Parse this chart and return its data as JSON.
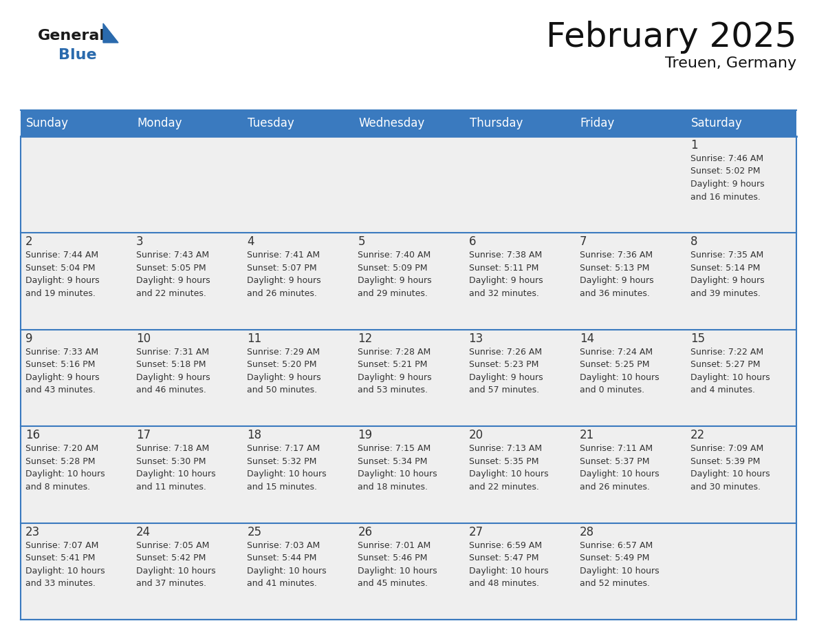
{
  "title": "February 2025",
  "subtitle": "Treuen, Germany",
  "header_color": "#3a7abf",
  "header_text_color": "#ffffff",
  "cell_bg_top": "#eeeeee",
  "cell_bg_main": "#ffffff",
  "day_number_color": "#333333",
  "text_color": "#333333",
  "border_color": "#3a7abf",
  "separator_color": "#3a7abf",
  "days_of_week": [
    "Sunday",
    "Monday",
    "Tuesday",
    "Wednesday",
    "Thursday",
    "Friday",
    "Saturday"
  ],
  "calendar_data": [
    [
      {
        "day": "",
        "info": ""
      },
      {
        "day": "",
        "info": ""
      },
      {
        "day": "",
        "info": ""
      },
      {
        "day": "",
        "info": ""
      },
      {
        "day": "",
        "info": ""
      },
      {
        "day": "",
        "info": ""
      },
      {
        "day": "1",
        "info": "Sunrise: 7:46 AM\nSunset: 5:02 PM\nDaylight: 9 hours\nand 16 minutes."
      }
    ],
    [
      {
        "day": "2",
        "info": "Sunrise: 7:44 AM\nSunset: 5:04 PM\nDaylight: 9 hours\nand 19 minutes."
      },
      {
        "day": "3",
        "info": "Sunrise: 7:43 AM\nSunset: 5:05 PM\nDaylight: 9 hours\nand 22 minutes."
      },
      {
        "day": "4",
        "info": "Sunrise: 7:41 AM\nSunset: 5:07 PM\nDaylight: 9 hours\nand 26 minutes."
      },
      {
        "day": "5",
        "info": "Sunrise: 7:40 AM\nSunset: 5:09 PM\nDaylight: 9 hours\nand 29 minutes."
      },
      {
        "day": "6",
        "info": "Sunrise: 7:38 AM\nSunset: 5:11 PM\nDaylight: 9 hours\nand 32 minutes."
      },
      {
        "day": "7",
        "info": "Sunrise: 7:36 AM\nSunset: 5:13 PM\nDaylight: 9 hours\nand 36 minutes."
      },
      {
        "day": "8",
        "info": "Sunrise: 7:35 AM\nSunset: 5:14 PM\nDaylight: 9 hours\nand 39 minutes."
      }
    ],
    [
      {
        "day": "9",
        "info": "Sunrise: 7:33 AM\nSunset: 5:16 PM\nDaylight: 9 hours\nand 43 minutes."
      },
      {
        "day": "10",
        "info": "Sunrise: 7:31 AM\nSunset: 5:18 PM\nDaylight: 9 hours\nand 46 minutes."
      },
      {
        "day": "11",
        "info": "Sunrise: 7:29 AM\nSunset: 5:20 PM\nDaylight: 9 hours\nand 50 minutes."
      },
      {
        "day": "12",
        "info": "Sunrise: 7:28 AM\nSunset: 5:21 PM\nDaylight: 9 hours\nand 53 minutes."
      },
      {
        "day": "13",
        "info": "Sunrise: 7:26 AM\nSunset: 5:23 PM\nDaylight: 9 hours\nand 57 minutes."
      },
      {
        "day": "14",
        "info": "Sunrise: 7:24 AM\nSunset: 5:25 PM\nDaylight: 10 hours\nand 0 minutes."
      },
      {
        "day": "15",
        "info": "Sunrise: 7:22 AM\nSunset: 5:27 PM\nDaylight: 10 hours\nand 4 minutes."
      }
    ],
    [
      {
        "day": "16",
        "info": "Sunrise: 7:20 AM\nSunset: 5:28 PM\nDaylight: 10 hours\nand 8 minutes."
      },
      {
        "day": "17",
        "info": "Sunrise: 7:18 AM\nSunset: 5:30 PM\nDaylight: 10 hours\nand 11 minutes."
      },
      {
        "day": "18",
        "info": "Sunrise: 7:17 AM\nSunset: 5:32 PM\nDaylight: 10 hours\nand 15 minutes."
      },
      {
        "day": "19",
        "info": "Sunrise: 7:15 AM\nSunset: 5:34 PM\nDaylight: 10 hours\nand 18 minutes."
      },
      {
        "day": "20",
        "info": "Sunrise: 7:13 AM\nSunset: 5:35 PM\nDaylight: 10 hours\nand 22 minutes."
      },
      {
        "day": "21",
        "info": "Sunrise: 7:11 AM\nSunset: 5:37 PM\nDaylight: 10 hours\nand 26 minutes."
      },
      {
        "day": "22",
        "info": "Sunrise: 7:09 AM\nSunset: 5:39 PM\nDaylight: 10 hours\nand 30 minutes."
      }
    ],
    [
      {
        "day": "23",
        "info": "Sunrise: 7:07 AM\nSunset: 5:41 PM\nDaylight: 10 hours\nand 33 minutes."
      },
      {
        "day": "24",
        "info": "Sunrise: 7:05 AM\nSunset: 5:42 PM\nDaylight: 10 hours\nand 37 minutes."
      },
      {
        "day": "25",
        "info": "Sunrise: 7:03 AM\nSunset: 5:44 PM\nDaylight: 10 hours\nand 41 minutes."
      },
      {
        "day": "26",
        "info": "Sunrise: 7:01 AM\nSunset: 5:46 PM\nDaylight: 10 hours\nand 45 minutes."
      },
      {
        "day": "27",
        "info": "Sunrise: 6:59 AM\nSunset: 5:47 PM\nDaylight: 10 hours\nand 48 minutes."
      },
      {
        "day": "28",
        "info": "Sunrise: 6:57 AM\nSunset: 5:49 PM\nDaylight: 10 hours\nand 52 minutes."
      },
      {
        "day": "",
        "info": ""
      }
    ]
  ],
  "logo_general_color": "#1a1a1a",
  "logo_blue_color": "#2a6aad",
  "logo_triangle_color": "#2a6aad",
  "title_fontsize": 36,
  "subtitle_fontsize": 16,
  "header_fontsize": 12,
  "day_num_fontsize": 12,
  "info_fontsize": 9
}
